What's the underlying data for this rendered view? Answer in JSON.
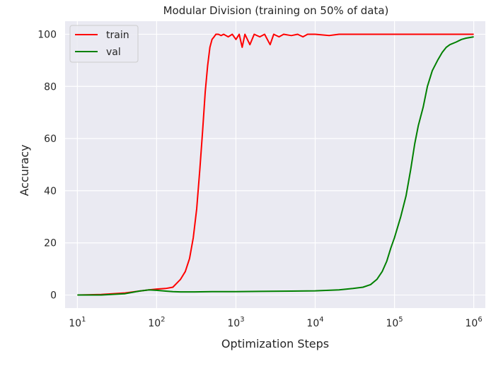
{
  "chart_data": {
    "type": "line",
    "title": "Modular Division (training on 50% of data)",
    "xlabel": "Optimization Steps",
    "ylabel": "Accuracy",
    "xscale": "log",
    "xlim": [
      7,
      1400000
    ],
    "ylim": [
      -5,
      105
    ],
    "grid": true,
    "background": "#eaeaf2",
    "legend": "top-left",
    "x_ticks": [
      10,
      100,
      1000,
      10000,
      100000,
      1000000
    ],
    "x_tick_labels": [
      {
        "base": "10",
        "exp": "1"
      },
      {
        "base": "10",
        "exp": "2"
      },
      {
        "base": "10",
        "exp": "3"
      },
      {
        "base": "10",
        "exp": "4"
      },
      {
        "base": "10",
        "exp": "5"
      },
      {
        "base": "10",
        "exp": "6"
      }
    ],
    "y_ticks": [
      0,
      20,
      40,
      60,
      80,
      100
    ],
    "y_tick_labels": [
      "0",
      "20",
      "40",
      "60",
      "80",
      "100"
    ],
    "series": [
      {
        "name": "train",
        "color": "#ff0000",
        "x": [
          10,
          20,
          40,
          60,
          80,
          100,
          130,
          160,
          200,
          230,
          260,
          290,
          320,
          350,
          380,
          410,
          440,
          470,
          500,
          530,
          560,
          600,
          650,
          700,
          800,
          900,
          1000,
          1100,
          1200,
          1300,
          1500,
          1700,
          2000,
          2300,
          2700,
          3000,
          3500,
          4000,
          5000,
          6000,
          7000,
          8000,
          10000,
          15000,
          20000,
          30000,
          50000,
          100000,
          200000,
          500000,
          1000000
        ],
        "y": [
          0,
          0.2,
          0.8,
          1.5,
          2,
          2.3,
          2.5,
          3,
          6,
          9,
          14,
          22,
          33,
          48,
          63,
          78,
          88,
          95,
          98,
          99,
          100,
          100,
          99.5,
          100,
          99,
          100,
          98,
          100,
          95,
          100,
          96,
          100,
          99,
          100,
          96,
          100,
          99,
          100,
          99.5,
          100,
          99,
          100,
          100,
          99.5,
          100,
          100,
          100,
          100,
          100,
          100,
          100
        ]
      },
      {
        "name": "val",
        "color": "#008000",
        "x": [
          10,
          20,
          40,
          60,
          80,
          100,
          130,
          160,
          200,
          300,
          500,
          1000,
          2000,
          5000,
          10000,
          20000,
          30000,
          40000,
          50000,
          60000,
          70000,
          80000,
          90000,
          100000,
          120000,
          140000,
          160000,
          180000,
          200000,
          230000,
          260000,
          300000,
          350000,
          400000,
          450000,
          500000,
          600000,
          700000,
          800000,
          1000000
        ],
        "y": [
          0,
          0,
          0.5,
          1.5,
          2,
          1.8,
          1.5,
          1.3,
          1.2,
          1.2,
          1.3,
          1.3,
          1.4,
          1.5,
          1.6,
          2,
          2.5,
          3,
          4,
          6,
          9,
          13,
          18,
          22,
          30,
          38,
          48,
          58,
          65,
          72,
          80,
          86,
          90,
          93,
          95,
          96,
          97,
          98,
          98.5,
          99
        ]
      }
    ]
  }
}
